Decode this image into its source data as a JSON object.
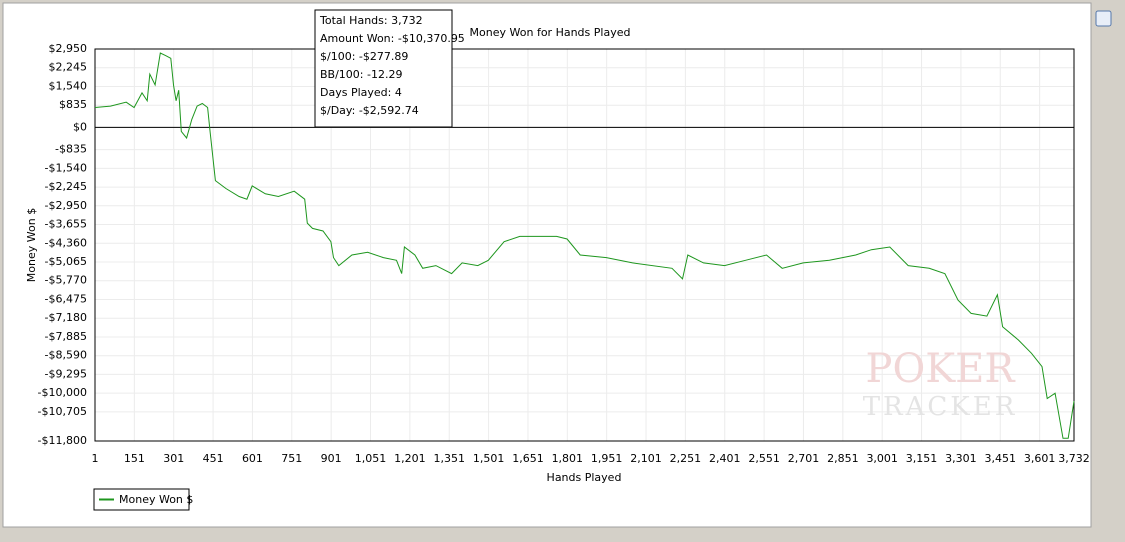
{
  "chart_data": {
    "type": "line",
    "title": "Money Won for Hands Played",
    "x_label": "Hands Played",
    "y_label": "Money Won $",
    "annotations": [
      "Total Hands: 3,732",
      "Amount Won: -$10,370.95",
      "$/100: -$277.89",
      "BB/100: -12.29",
      "Days Played: 4",
      "$/Day: -$2,592.74"
    ],
    "watermark": [
      "POKER",
      "TRACKER"
    ],
    "legend": "bottom-left",
    "grid": true,
    "xlim": [
      1,
      3732
    ],
    "ylim": [
      -11800,
      2950
    ],
    "xticks": [
      1,
      151,
      301,
      451,
      601,
      751,
      901,
      {
        "value": 1051,
        "label": "1,051"
      },
      {
        "value": 1201,
        "label": "1,201"
      },
      {
        "value": 1351,
        "label": "1,351"
      },
      {
        "value": 1501,
        "label": "1,501"
      },
      {
        "value": 1651,
        "label": "1,651"
      },
      {
        "value": 1801,
        "label": "1,801"
      },
      {
        "value": 1951,
        "label": "1,951"
      },
      {
        "value": 2101,
        "label": "2,101"
      },
      {
        "value": 2251,
        "label": "2,251"
      },
      {
        "value": 2401,
        "label": "2,401"
      },
      {
        "value": 2551,
        "label": "2,551"
      },
      {
        "value": 2701,
        "label": "2,701"
      },
      {
        "value": 2851,
        "label": "2,851"
      },
      {
        "value": 3001,
        "label": "3,001"
      },
      {
        "value": 3151,
        "label": "3,151"
      },
      {
        "value": 3301,
        "label": "3,301"
      },
      {
        "value": 3451,
        "label": "3,451"
      },
      {
        "value": 3601,
        "label": "3,601"
      },
      {
        "value": 3732,
        "label": "3,732"
      }
    ],
    "yticks": [
      {
        "value": 2950,
        "label": "$2,950"
      },
      {
        "value": 2245,
        "label": "$2,245"
      },
      {
        "value": 1540,
        "label": "$1,540"
      },
      {
        "value": 835,
        "label": "$835"
      },
      {
        "value": 0,
        "label": "$0"
      },
      {
        "value": -835,
        "label": "-$835"
      },
      {
        "value": -1540,
        "label": "-$1,540"
      },
      {
        "value": -2245,
        "label": "-$2,245"
      },
      {
        "value": -2950,
        "label": "-$2,950"
      },
      {
        "value": -3655,
        "label": "-$3,655"
      },
      {
        "value": -4360,
        "label": "-$4,360"
      },
      {
        "value": -5065,
        "label": "-$5,065"
      },
      {
        "value": -5770,
        "label": "-$5,770"
      },
      {
        "value": -6475,
        "label": "-$6,475"
      },
      {
        "value": -7180,
        "label": "-$7,180"
      },
      {
        "value": -7885,
        "label": "-$7,885"
      },
      {
        "value": -8590,
        "label": "-$8,590"
      },
      {
        "value": -9295,
        "label": "-$9,295"
      },
      {
        "value": -10000,
        "label": "-$10,000"
      },
      {
        "value": -10705,
        "label": "-$10,705"
      },
      {
        "value": -11800,
        "label": "-$11,800"
      }
    ],
    "x": [
      1,
      60,
      120,
      150,
      180,
      200,
      210,
      230,
      250,
      270,
      290,
      300,
      310,
      320,
      330,
      350,
      370,
      390,
      410,
      430,
      440,
      460,
      500,
      550,
      580,
      600,
      650,
      700,
      760,
      800,
      810,
      830,
      870,
      900,
      910,
      930,
      980,
      1040,
      1100,
      1150,
      1170,
      1180,
      1220,
      1250,
      1300,
      1360,
      1400,
      1460,
      1500,
      1560,
      1620,
      1700,
      1760,
      1800,
      1850,
      1950,
      2050,
      2200,
      2240,
      2260,
      2320,
      2400,
      2480,
      2560,
      2620,
      2700,
      2800,
      2900,
      2960,
      3030,
      3100,
      3180,
      3240,
      3290,
      3340,
      3400,
      3440,
      3460,
      3520,
      3570,
      3610,
      3630,
      3660,
      3690,
      3710,
      3732
    ],
    "series": [
      {
        "name": "Money Won $",
        "color": "#1e961e",
        "values": [
          750,
          800,
          950,
          750,
          1300,
          1000,
          2000,
          1600,
          2800,
          2700,
          2600,
          1600,
          1000,
          1400,
          -150,
          -400,
          300,
          800,
          900,
          750,
          -200,
          -2000,
          -2300,
          -2600,
          -2700,
          -2200,
          -2500,
          -2600,
          -2400,
          -2700,
          -3600,
          -3800,
          -3900,
          -4300,
          -4900,
          -5200,
          -4800,
          -4700,
          -4900,
          -5000,
          -5500,
          -4500,
          -4800,
          -5300,
          -5200,
          -5500,
          -5100,
          -5200,
          -5000,
          -4300,
          -4100,
          -4100,
          -4100,
          -4200,
          -4800,
          -4900,
          -5100,
          -5300,
          -5700,
          -4800,
          -5100,
          -5200,
          -5000,
          -4800,
          -5300,
          -5100,
          -5000,
          -4800,
          -4600,
          -4500,
          -5200,
          -5300,
          -5500,
          -6500,
          -7000,
          -7100,
          -6300,
          -7500,
          -8000,
          -8500,
          -9000,
          -10200,
          -10000,
          -11700,
          -11700,
          -10300
        ]
      }
    ]
  }
}
